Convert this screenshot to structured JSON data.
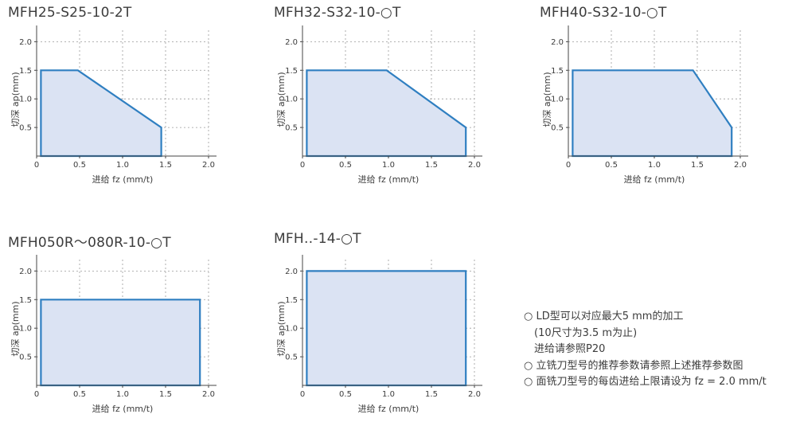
{
  "chart_data": [
    {
      "type": "area",
      "title": "MFH25-S25-10-2T",
      "xlabel": "进给 fz (mm/t)",
      "ylabel": "切深 ap(mm)",
      "xlim": [
        0,
        2.0
      ],
      "ylim": [
        0,
        2.2
      ],
      "xticks": [
        "0",
        "0.5",
        "1.0",
        "1.5",
        "2.0"
      ],
      "yticks": [
        "0.5",
        "1.0",
        "1.5",
        "2.0"
      ],
      "grid": true,
      "x": [
        0.05,
        0.48,
        1.45,
        1.45,
        0.05
      ],
      "y": [
        1.5,
        1.5,
        0.5,
        0,
        0
      ]
    },
    {
      "type": "area",
      "title": "MFH32-S32-10-○T",
      "xlabel": "进给 fz (mm/t)",
      "ylabel": "切深 ap(mm)",
      "xlim": [
        0,
        2.0
      ],
      "ylim": [
        0,
        2.2
      ],
      "xticks": [
        "0",
        "0.5",
        "1.0",
        "1.5",
        "2.0"
      ],
      "yticks": [
        "0.5",
        "1.0",
        "1.5",
        "2.0"
      ],
      "grid": true,
      "x": [
        0.05,
        0.98,
        1.9,
        1.9,
        0.05
      ],
      "y": [
        1.5,
        1.5,
        0.5,
        0,
        0
      ]
    },
    {
      "type": "area",
      "title": "MFH40-S32-10-○T",
      "xlabel": "进给 fz (mm/t)",
      "ylabel": "切深 ap(mm)",
      "xlim": [
        0,
        2.0
      ],
      "ylim": [
        0,
        2.2
      ],
      "xticks": [
        "0",
        "0.5",
        "1.0",
        "1.5",
        "2.0"
      ],
      "yticks": [
        "0.5",
        "1.0",
        "1.5",
        "2.0"
      ],
      "grid": true,
      "x": [
        0.05,
        1.45,
        1.9,
        1.9,
        0.05
      ],
      "y": [
        1.5,
        1.5,
        0.5,
        0,
        0
      ]
    },
    {
      "type": "area",
      "title": "MFH050R～080R-10-○T",
      "xlabel": "进给 fz (mm/t)",
      "ylabel": "切深 ap(mm)",
      "xlim": [
        0,
        2.0
      ],
      "ylim": [
        0,
        2.2
      ],
      "xticks": [
        "0",
        "0.5",
        "1.0",
        "1.5",
        "2.0"
      ],
      "yticks": [
        "0.5",
        "1.0",
        "1.5",
        "2.0"
      ],
      "grid": true,
      "x": [
        0.05,
        1.9,
        1.9,
        0.05
      ],
      "y": [
        1.5,
        1.5,
        0,
        0
      ]
    },
    {
      "type": "area",
      "title": "MFH‥-14-○T",
      "xlabel": "进给 fz (mm/t)",
      "ylabel": "切深 ap(mm)",
      "xlim": [
        0,
        2.0
      ],
      "ylim": [
        0,
        2.2
      ],
      "xticks": [
        "0",
        "0.5",
        "1.0",
        "1.5",
        "2.0"
      ],
      "yticks": [
        "0.5",
        "1.0",
        "1.5",
        "2.0"
      ],
      "grid": true,
      "x": [
        0.05,
        1.9,
        1.9,
        0.05
      ],
      "y": [
        2.0,
        2.0,
        0,
        0
      ]
    }
  ],
  "notes": [
    "○ LD型可以对应最大5 mm的加工",
    "　(10尺寸为3.5 m为止)",
    "　进给请参照P20",
    "○ 立铣刀型号的推荐参数请参照上述推荐参数图",
    "○ 面铣刀型号的每齿进给上限请设为 fz = 2.0 mm/t"
  ],
  "colors": {
    "line": "#2f7fc1",
    "fill": "#dbe3f3",
    "axis": "#444444",
    "grid": "#9a9a9a",
    "text": "#3c3c3c"
  }
}
